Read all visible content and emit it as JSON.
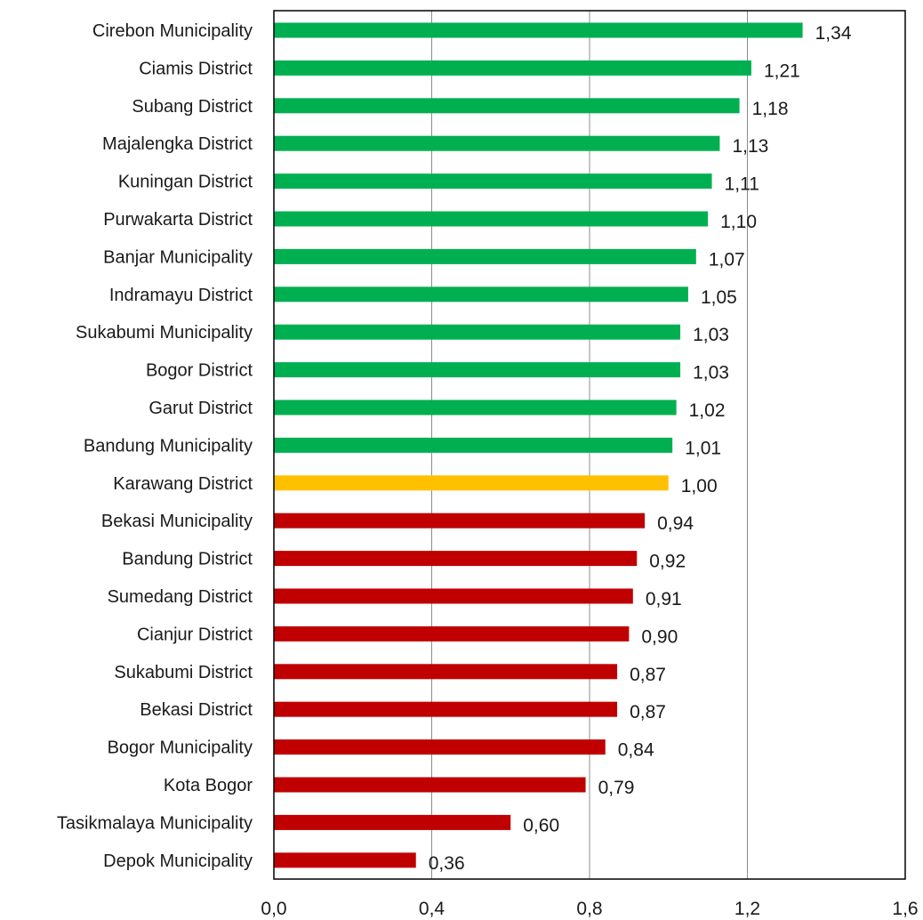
{
  "chart_data": {
    "type": "bar",
    "orientation": "horizontal",
    "title": "",
    "xlabel": "",
    "ylabel": "",
    "xlim": [
      0.0,
      1.6
    ],
    "x_ticks": [
      "0,0",
      "0,4",
      "0,8",
      "1,2",
      "1,6"
    ],
    "grid": "vertical",
    "colors": {
      "above": "#00b050",
      "equal": "#ffc000",
      "below": "#c00000"
    },
    "categories": [
      "Cirebon Municipality",
      "Ciamis District",
      "Subang District",
      "Majalengka District",
      "Kuningan District",
      "Purwakarta District",
      "Banjar Municipality",
      "Indramayu District",
      "Sukabumi Municipality",
      "Bogor District",
      "Garut District",
      "Bandung Municipality",
      "Karawang District",
      "Bekasi Municipality",
      "Bandung District",
      "Sumedang District",
      "Cianjur District",
      "Sukabumi District",
      "Bekasi District",
      "Bogor Municipality",
      "Kota Bogor",
      "Tasikmalaya Municipality",
      "Depok Municipality"
    ],
    "values": [
      1.34,
      1.21,
      1.18,
      1.13,
      1.11,
      1.1,
      1.07,
      1.05,
      1.03,
      1.03,
      1.02,
      1.01,
      1.0,
      0.94,
      0.92,
      0.91,
      0.9,
      0.87,
      0.87,
      0.84,
      0.79,
      0.6,
      0.36
    ],
    "value_labels": [
      "1,34",
      "1,21",
      "1,18",
      "1,13",
      "1,11",
      "1,10",
      "1,07",
      "1,05",
      "1,03",
      "1,03",
      "1,02",
      "1,01",
      "1,00",
      "0,94",
      "0,92",
      "0,91",
      "0,90",
      "0,87",
      "0,87",
      "0,84",
      "0,79",
      "0,60",
      "0,36"
    ]
  }
}
